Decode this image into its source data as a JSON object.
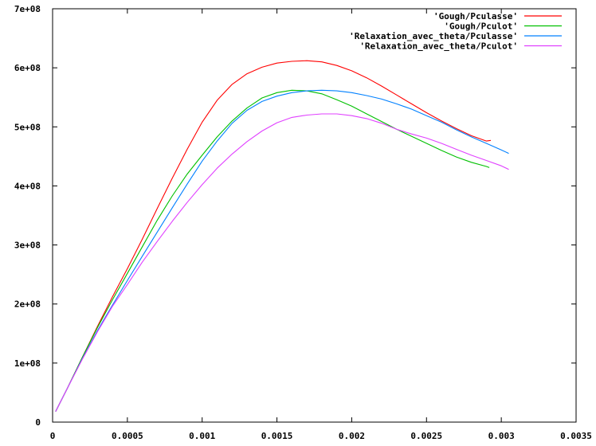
{
  "chart_data": {
    "type": "line",
    "title": "",
    "xlabel": "",
    "ylabel": "",
    "xlim": [
      0,
      0.0035
    ],
    "ylim": [
      0,
      700000000
    ],
    "grid": false,
    "legend_position": "top-right",
    "x_ticks": [
      {
        "value": 0,
        "label": "0"
      },
      {
        "value": 0.0005,
        "label": "0.0005"
      },
      {
        "value": 0.001,
        "label": "0.001"
      },
      {
        "value": 0.0015,
        "label": "0.0015"
      },
      {
        "value": 0.002,
        "label": "0.002"
      },
      {
        "value": 0.0025,
        "label": "0.0025"
      },
      {
        "value": 0.003,
        "label": "0.003"
      },
      {
        "value": 0.0035,
        "label": "0.0035"
      }
    ],
    "y_ticks": [
      {
        "value": 0,
        "label": "0"
      },
      {
        "value": 100000000,
        "label": "1e+08"
      },
      {
        "value": 200000000,
        "label": "2e+08"
      },
      {
        "value": 300000000,
        "label": "3e+08"
      },
      {
        "value": 400000000,
        "label": "4e+08"
      },
      {
        "value": 500000000,
        "label": "5e+08"
      },
      {
        "value": 600000000,
        "label": "6e+08"
      },
      {
        "value": 700000000,
        "label": "7e+08"
      }
    ],
    "series": [
      {
        "name": "'Gough/Pculasse'",
        "color": "#ff0000",
        "x": [
          2e-05,
          0.0001,
          0.0002,
          0.0003,
          0.0004,
          0.0005,
          0.0006,
          0.0007,
          0.0008,
          0.0009,
          0.001,
          0.0011,
          0.0012,
          0.0013,
          0.0014,
          0.0015,
          0.0016,
          0.0017,
          0.0018,
          0.0019,
          0.002,
          0.0021,
          0.0022,
          0.0023,
          0.0024,
          0.0025,
          0.0026,
          0.0027,
          0.0028,
          0.0029,
          0.00293
        ],
        "y": [
          18000000,
          58000000,
          110000000,
          162000000,
          212000000,
          260000000,
          310000000,
          362000000,
          413000000,
          462000000,
          508000000,
          545000000,
          572000000,
          590000000,
          601000000,
          608000000,
          611000000,
          612000000,
          610000000,
          604000000,
          595000000,
          583000000,
          569000000,
          554000000,
          539000000,
          524000000,
          510000000,
          497000000,
          485000000,
          476000000,
          477000000
        ]
      },
      {
        "name": "'Gough/Pculot'",
        "color": "#00c000",
        "x": [
          2e-05,
          0.0001,
          0.0002,
          0.0003,
          0.0004,
          0.0005,
          0.0006,
          0.0007,
          0.0008,
          0.0009,
          0.001,
          0.0011,
          0.0012,
          0.0013,
          0.0014,
          0.0015,
          0.0016,
          0.0017,
          0.0018,
          0.0019,
          0.002,
          0.0021,
          0.0022,
          0.0023,
          0.0024,
          0.0025,
          0.0026,
          0.0027,
          0.0028,
          0.0029,
          0.00292
        ],
        "y": [
          18000000,
          58000000,
          110000000,
          160000000,
          207000000,
          252000000,
          297000000,
          342000000,
          383000000,
          420000000,
          452000000,
          483000000,
          510000000,
          532000000,
          549000000,
          558000000,
          562000000,
          561000000,
          556000000,
          546000000,
          535000000,
          522000000,
          509000000,
          496000000,
          484000000,
          472000000,
          460000000,
          449000000,
          440000000,
          433000000,
          431000000
        ]
      },
      {
        "name": "'Relaxation_avec_theta/Pculasse'",
        "color": "#0080ff",
        "x": [
          2e-05,
          0.0001,
          0.0002,
          0.0003,
          0.0004,
          0.0005,
          0.0006,
          0.0007,
          0.0008,
          0.0009,
          0.001,
          0.0011,
          0.0012,
          0.0013,
          0.0014,
          0.0015,
          0.0016,
          0.0017,
          0.0018,
          0.0019,
          0.002,
          0.0021,
          0.0022,
          0.0023,
          0.0024,
          0.0025,
          0.0026,
          0.0027,
          0.0028,
          0.0029,
          0.003,
          0.00305
        ],
        "y": [
          18000000,
          58000000,
          108000000,
          155000000,
          198000000,
          240000000,
          281000000,
          322000000,
          363000000,
          403000000,
          442000000,
          476000000,
          506000000,
          528000000,
          543000000,
          552000000,
          558000000,
          561000000,
          562000000,
          561000000,
          558000000,
          553000000,
          547000000,
          539000000,
          530000000,
          519000000,
          508000000,
          495000000,
          483000000,
          472000000,
          461000000,
          455000000
        ]
      },
      {
        "name": "'Relaxation_avec_theta/Pculot'",
        "color": "#e040ff",
        "x": [
          2e-05,
          0.0001,
          0.0002,
          0.0003,
          0.0004,
          0.0005,
          0.0006,
          0.0007,
          0.0008,
          0.0009,
          0.001,
          0.0011,
          0.0012,
          0.0013,
          0.0014,
          0.0015,
          0.0016,
          0.0017,
          0.0018,
          0.0019,
          0.002,
          0.0021,
          0.0022,
          0.0023,
          0.0024,
          0.0025,
          0.0026,
          0.0027,
          0.0028,
          0.0029,
          0.003,
          0.00305
        ],
        "y": [
          18000000,
          58000000,
          107000000,
          153000000,
          196000000,
          233000000,
          271000000,
          306000000,
          340000000,
          372000000,
          402000000,
          430000000,
          454000000,
          475000000,
          493000000,
          507000000,
          516000000,
          520000000,
          522000000,
          522000000,
          519000000,
          514000000,
          506000000,
          496000000,
          488000000,
          481000000,
          472000000,
          462000000,
          452000000,
          443000000,
          434000000,
          428000000
        ]
      }
    ]
  }
}
